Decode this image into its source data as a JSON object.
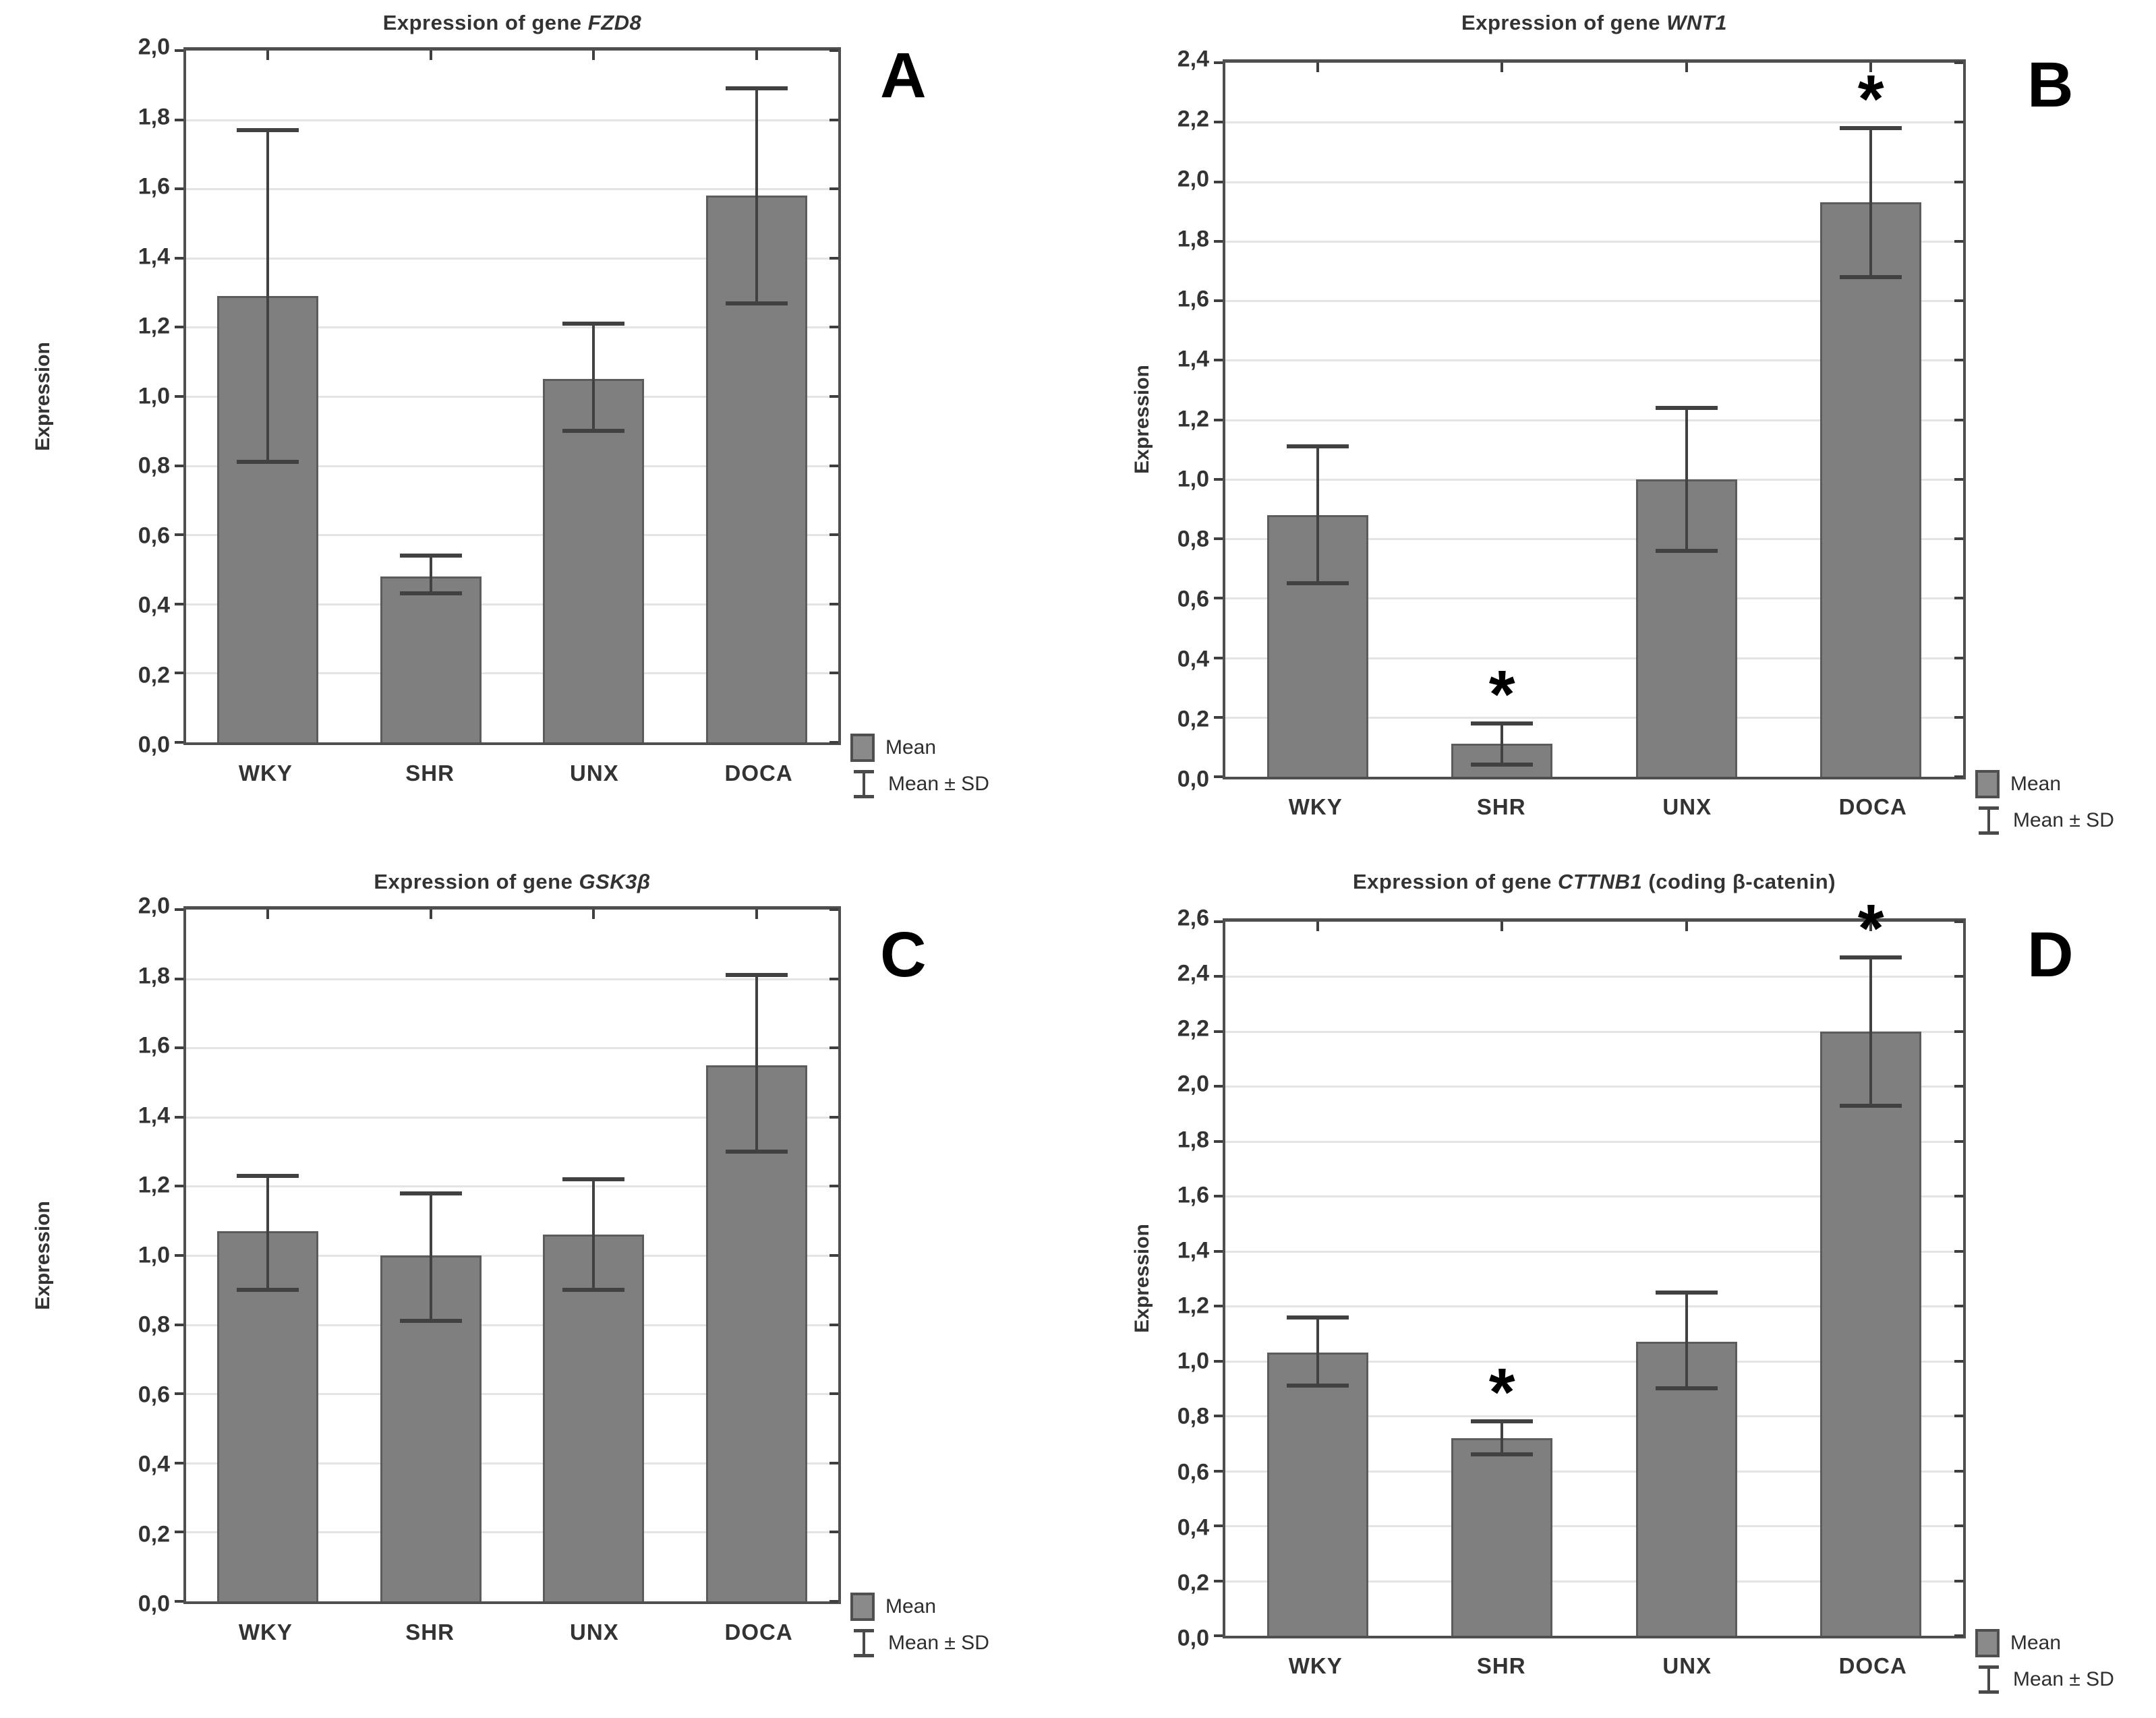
{
  "legend": {
    "mean_label": "Mean",
    "sd_label": "Mean ± SD"
  },
  "significance_marker": "*",
  "colors": {
    "bar_fill": "#7f7f7f",
    "bar_border": "#5c5c5c",
    "error_bar": "#414141",
    "frame": "#4f4f4f",
    "gridline": "#e4e4e4",
    "text": "#333333"
  },
  "chart_data": [
    {
      "type": "bar",
      "panel_label": "A",
      "title": "Expression of gene FZD8",
      "title_prefix": "Expression of gene ",
      "title_gene": "FZD8",
      "title_suffix": "",
      "ylabel": "Expression",
      "xlabel": "",
      "categories": [
        "WKY",
        "SHR",
        "UNX",
        "DOCA"
      ],
      "values": [
        1.29,
        0.48,
        1.05,
        1.58
      ],
      "sd_low": [
        0.81,
        0.43,
        0.9,
        1.27
      ],
      "sd_high": [
        1.77,
        0.54,
        1.21,
        1.89
      ],
      "significant": [
        false,
        false,
        false,
        false
      ],
      "ylim": [
        0,
        2.0
      ],
      "ytick_step": 0.2,
      "y_tick_labels": [
        "0,0",
        "0,2",
        "0,4",
        "0,6",
        "0,8",
        "1,0",
        "1,2",
        "1,4",
        "1,6",
        "1,8",
        "2,0"
      ],
      "grid": true,
      "legend_position": "bottom-right",
      "legend_entries": [
        "Mean",
        "Mean ± SD"
      ]
    },
    {
      "type": "bar",
      "panel_label": "B",
      "title": "Expression of gene WNT1",
      "title_prefix": "Expression of gene ",
      "title_gene": "WNT1",
      "title_suffix": "",
      "ylabel": "Expression",
      "xlabel": "",
      "categories": [
        "WKY",
        "SHR",
        "UNX",
        "DOCA"
      ],
      "values": [
        0.88,
        0.11,
        1.0,
        1.93
      ],
      "sd_low": [
        0.65,
        0.04,
        0.76,
        1.68
      ],
      "sd_high": [
        1.11,
        0.18,
        1.24,
        2.18
      ],
      "significant": [
        false,
        true,
        false,
        true
      ],
      "ylim": [
        0,
        2.4
      ],
      "ytick_step": 0.2,
      "y_tick_labels": [
        "0,0",
        "0,2",
        "0,4",
        "0,6",
        "0,8",
        "1,0",
        "1,2",
        "1,4",
        "1,6",
        "1,8",
        "2,0",
        "2,2",
        "2,4"
      ],
      "grid": true,
      "legend_position": "bottom-right",
      "legend_entries": [
        "Mean",
        "Mean ± SD"
      ]
    },
    {
      "type": "bar",
      "panel_label": "C",
      "title": "Expression of gene GSK3β",
      "title_prefix": "Expression of gene ",
      "title_gene": "GSK3β",
      "title_suffix": "",
      "ylabel": "Expression",
      "xlabel": "",
      "categories": [
        "WKY",
        "SHR",
        "UNX",
        "DOCA"
      ],
      "values": [
        1.07,
        1.0,
        1.06,
        1.55
      ],
      "sd_low": [
        0.9,
        0.81,
        0.9,
        1.3
      ],
      "sd_high": [
        1.23,
        1.18,
        1.22,
        1.81
      ],
      "significant": [
        false,
        false,
        false,
        false
      ],
      "ylim": [
        0,
        2.0
      ],
      "ytick_step": 0.2,
      "y_tick_labels": [
        "0,0",
        "0,2",
        "0,4",
        "0,6",
        "0,8",
        "1,0",
        "1,2",
        "1,4",
        "1,6",
        "1,8",
        "2,0"
      ],
      "grid": true,
      "legend_position": "bottom-right",
      "legend_entries": [
        "Mean",
        "Mean ± SD"
      ]
    },
    {
      "type": "bar",
      "panel_label": "D",
      "title": "Expression of gene CTTNB1 (coding β-catenin)",
      "title_prefix": "Expression of gene ",
      "title_gene": "CTTNB1",
      "title_suffix": " (coding β-catenin)",
      "ylabel": "Expression",
      "xlabel": "",
      "categories": [
        "WKY",
        "SHR",
        "UNX",
        "DOCA"
      ],
      "values": [
        1.03,
        0.72,
        1.07,
        2.2
      ],
      "sd_low": [
        0.91,
        0.66,
        0.9,
        1.93
      ],
      "sd_high": [
        1.16,
        0.78,
        1.25,
        2.47
      ],
      "significant": [
        false,
        true,
        false,
        true
      ],
      "ylim": [
        0,
        2.6
      ],
      "ytick_step": 0.2,
      "y_tick_labels": [
        "0,0",
        "0,2",
        "0,4",
        "0,6",
        "0,8",
        "1,0",
        "1,2",
        "1,4",
        "1,6",
        "1,8",
        "2,0",
        "2,2",
        "2,4",
        "2,6"
      ],
      "grid": true,
      "legend_position": "bottom-right",
      "legend_entries": [
        "Mean",
        "Mean ± SD"
      ]
    }
  ]
}
